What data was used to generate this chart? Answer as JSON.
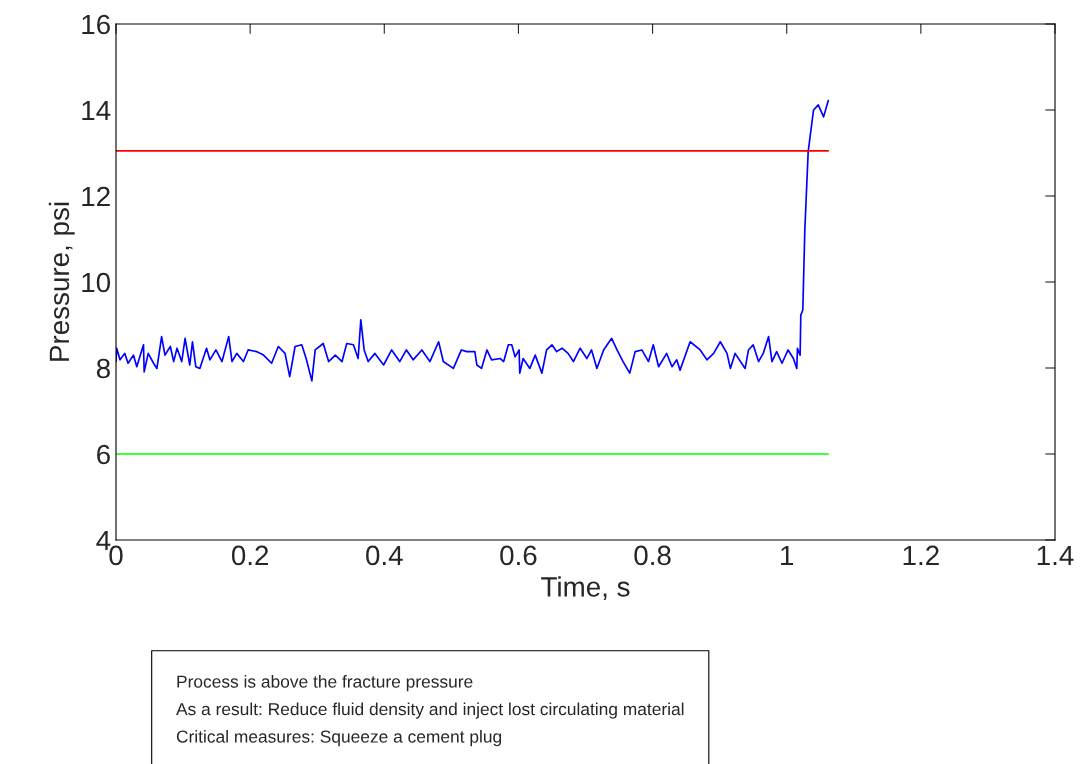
{
  "chart_data": {
    "type": "line",
    "xlabel": "Time, s",
    "ylabel": "Pressure, psi",
    "xlim": [
      0,
      1.4
    ],
    "xticks": [
      0,
      0.2,
      0.4,
      0.6,
      0.8,
      1,
      1.2,
      1.4
    ],
    "ylim": [
      4,
      16
    ],
    "yticks": [
      4,
      6,
      8,
      10,
      12,
      14,
      16
    ],
    "grid": false,
    "series": [
      {
        "color": "#0000ff",
        "x": [
          0,
          0.001,
          0.006,
          0.013,
          0.018,
          0.026,
          0.031,
          0.041,
          0.042,
          0.048,
          0.056,
          0.061,
          0.068,
          0.073,
          0.081,
          0.086,
          0.091,
          0.098,
          0.103,
          0.11,
          0.114,
          0.119,
          0.125,
          0.135,
          0.14,
          0.149,
          0.158,
          0.168,
          0.173,
          0.18,
          0.19,
          0.197,
          0.21,
          0.22,
          0.232,
          0.242,
          0.252,
          0.259,
          0.267,
          0.277,
          0.284,
          0.292,
          0.297,
          0.309,
          0.317,
          0.327,
          0.337,
          0.344,
          0.354,
          0.361,
          0.365,
          0.37,
          0.376,
          0.386,
          0.399,
          0.411,
          0.423,
          0.433,
          0.443,
          0.456,
          0.468,
          0.481,
          0.488,
          0.503,
          0.515,
          0.523,
          0.535,
          0.538,
          0.545,
          0.553,
          0.56,
          0.573,
          0.578,
          0.585,
          0.59,
          0.595,
          0.601,
          0.602,
          0.607,
          0.617,
          0.625,
          0.635,
          0.642,
          0.65,
          0.657,
          0.665,
          0.674,
          0.682,
          0.692,
          0.702,
          0.709,
          0.717,
          0.727,
          0.739,
          0.747,
          0.756,
          0.766,
          0.774,
          0.784,
          0.794,
          0.801,
          0.809,
          0.821,
          0.829,
          0.836,
          0.841,
          0.856,
          0.871,
          0.881,
          0.891,
          0.901,
          0.911,
          0.916,
          0.923,
          0.938,
          0.943,
          0.95,
          0.958,
          0.965,
          0.973,
          0.978,
          0.985,
          0.993,
          1.002,
          1.01,
          1.015,
          1.016,
          1.02,
          1.021,
          1.024,
          1.027,
          1.032,
          1.04,
          1.047,
          1.055,
          1.062
        ],
        "values": [
          8.15,
          8.46,
          8.19,
          8.34,
          8.11,
          8.3,
          8.03,
          8.54,
          7.91,
          8.34,
          8.11,
          7.99,
          8.73,
          8.3,
          8.5,
          8.15,
          8.46,
          8.15,
          8.69,
          8.07,
          8.61,
          8.03,
          7.99,
          8.46,
          8.19,
          8.42,
          8.15,
          8.73,
          8.15,
          8.34,
          8.15,
          8.42,
          8.38,
          8.3,
          8.11,
          8.5,
          8.34,
          7.8,
          8.5,
          8.54,
          8.19,
          7.7,
          8.42,
          8.57,
          8.15,
          8.3,
          8.15,
          8.57,
          8.54,
          8.22,
          9.12,
          8.42,
          8.15,
          8.34,
          8.07,
          8.42,
          8.15,
          8.42,
          8.19,
          8.42,
          8.15,
          8.61,
          8.15,
          7.99,
          8.42,
          8.38,
          8.38,
          8.07,
          7.99,
          8.42,
          8.19,
          8.22,
          8.15,
          8.54,
          8.54,
          8.26,
          8.42,
          7.88,
          8.22,
          7.99,
          8.3,
          7.88,
          8.42,
          8.54,
          8.38,
          8.46,
          8.34,
          8.15,
          8.46,
          8.22,
          8.42,
          7.99,
          8.42,
          8.69,
          8.42,
          8.15,
          7.88,
          8.38,
          8.42,
          8.15,
          8.54,
          8.03,
          8.34,
          8.03,
          8.19,
          7.95,
          8.61,
          8.42,
          8.19,
          8.34,
          8.61,
          8.34,
          7.99,
          8.34,
          7.99,
          8.42,
          8.54,
          8.15,
          8.34,
          8.73,
          8.15,
          8.38,
          8.11,
          8.42,
          8.22,
          7.99,
          8.46,
          8.3,
          9.23,
          9.35,
          11.21,
          13.03,
          14.0,
          14.12,
          13.84,
          14.22
        ]
      },
      {
        "color": "#ff0000",
        "x": [
          0,
          1.062
        ],
        "values": [
          13.05,
          13.05
        ]
      },
      {
        "color": "#00ff00",
        "x": [
          0,
          1.062
        ],
        "values": [
          6.0,
          6.0
        ]
      }
    ],
    "annotations": [
      "Process is above the fracture pressure\nAs a result: Reduce fluid density and inject lost circulating material\nCritical measures: Squeeze a cement plug"
    ]
  }
}
